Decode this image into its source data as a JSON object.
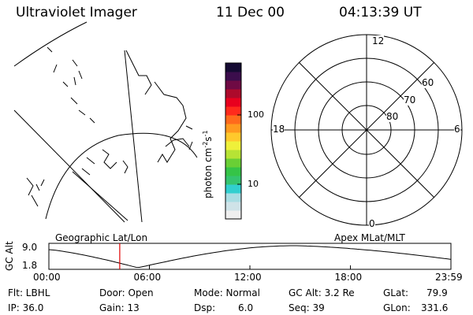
{
  "header": {
    "instrument": "Ultraviolet Imager",
    "date": "11 Dec 00",
    "time": "04:13:39 UT"
  },
  "colorbar": {
    "unit_label": "photon cm",
    "unit_exp1": "-2",
    "unit_s": "s",
    "unit_exp2": "-1",
    "tick_high": "100",
    "tick_low": "10",
    "colors": [
      "#efefef",
      "#cfe3e8",
      "#a8dde3",
      "#31cfcf",
      "#35c46f",
      "#35c447",
      "#6acf35",
      "#b7e335",
      "#eff03a",
      "#ffc92c",
      "#ff9a1f",
      "#ff6a1c",
      "#ff2a1c",
      "#e8001e",
      "#ad0a2b",
      "#6f0a44",
      "#3b0d4c",
      "#140a32"
    ]
  },
  "polar": {
    "mlt_top": "12",
    "mlt_left": "18",
    "mlt_right": "6",
    "mlt_bottom": "0",
    "lat_60": "60",
    "lat_70": "70",
    "lat_80": "80"
  },
  "orbit": {
    "left_title": "Geographic Lat/Lon",
    "right_title": "Apex MLat/MLT",
    "ylabel": "GC Alt",
    "y_high": "9.0",
    "y_low": "1.8",
    "x_ticks": [
      "00:00",
      "06:00",
      "12:00",
      "18:00",
      "23:59"
    ],
    "marker_hour": 4.23
  },
  "info": {
    "filter": "Flt: LBHL",
    "ip": "IP: 36.0",
    "door": "Door: Open",
    "gain": "Gain: 13",
    "mode": "Mode: Normal",
    "dsp_label": "Dsp:",
    "dsp_value": "6.0",
    "gc_alt": "GC Alt: 3.2 Re",
    "seq": "Seq: 39",
    "glat_label": "GLat:",
    "glat_value": "79.9",
    "glon_label": "GLon:",
    "glon_value": "331.6"
  }
}
